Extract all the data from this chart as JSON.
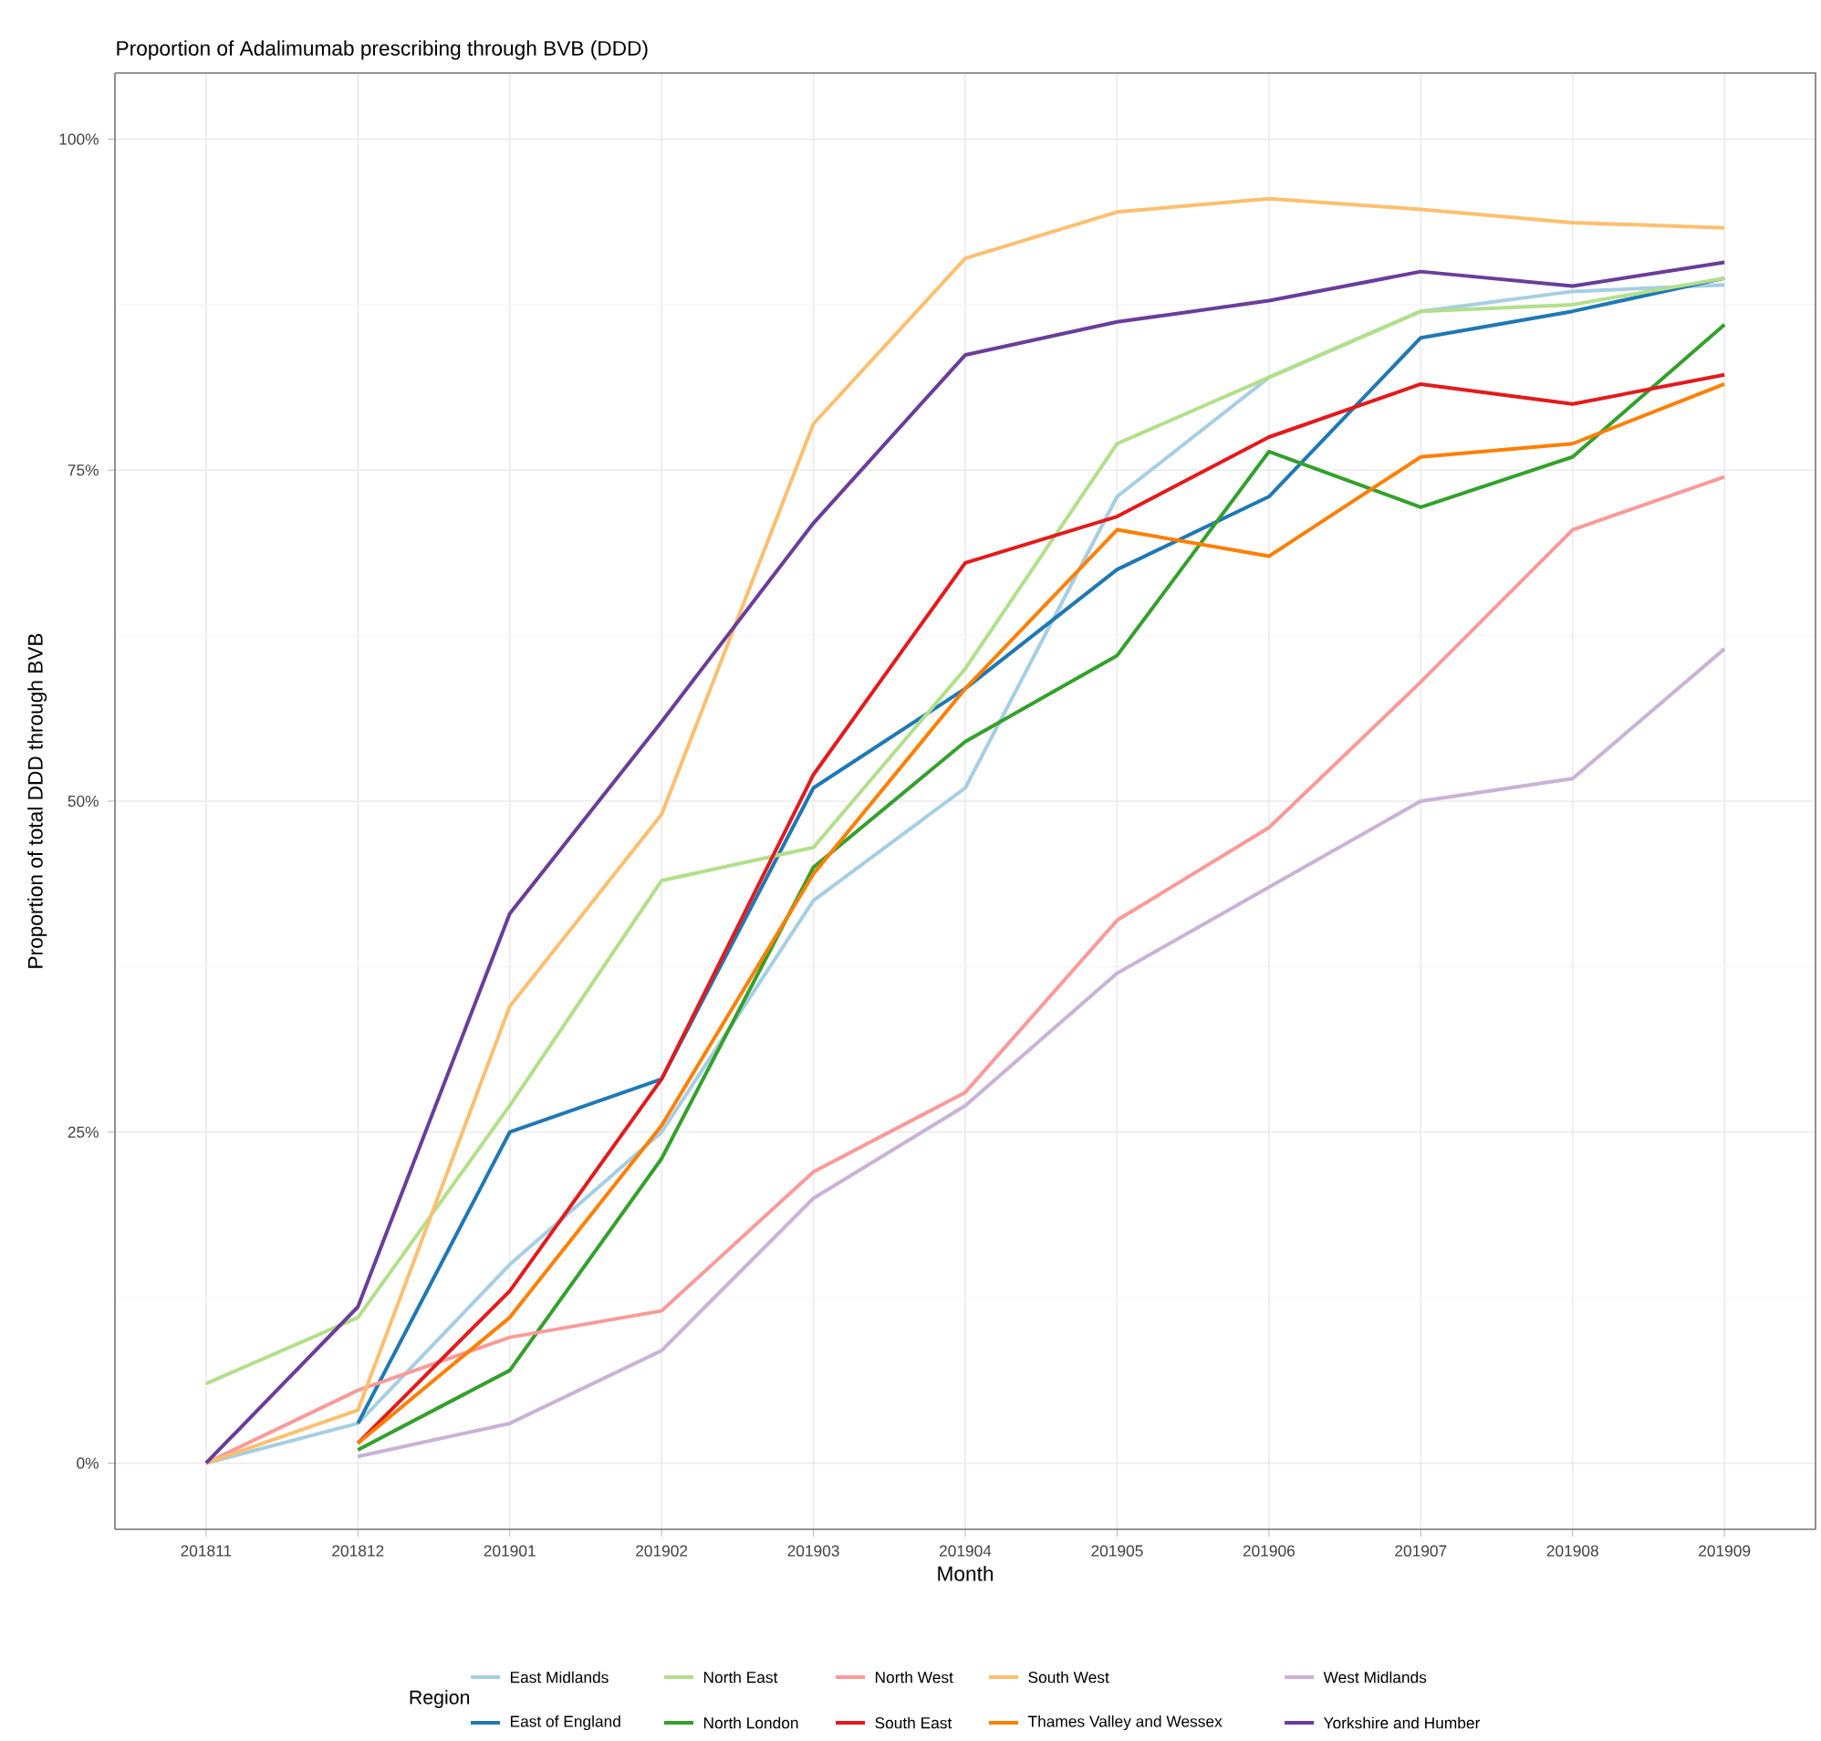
{
  "chart_data": {
    "type": "line",
    "title": "Proportion of Adalimumab prescribing through BVB (DDD)",
    "xlabel": "Month",
    "ylabel": "Proportion of total DDD through BVB",
    "legend_title": "Region",
    "legend": "bottom",
    "grid": true,
    "line_style": "solid",
    "categories": [
      "201811",
      "201812",
      "201901",
      "201902",
      "201903",
      "201904",
      "201905",
      "201906",
      "201907",
      "201908",
      "201909"
    ],
    "ylim": [
      -0.05,
      1.05
    ],
    "yticks": [
      {
        "value": 0,
        "label": "0%"
      },
      {
        "value": 0.25,
        "label": "25%"
      },
      {
        "value": 0.5,
        "label": "50%"
      },
      {
        "value": 0.75,
        "label": "75%"
      },
      {
        "value": 1,
        "label": "100%"
      }
    ],
    "series": [
      {
        "name": "East Midlands",
        "color": "#a6cee3",
        "values": [
          0,
          0.03,
          0.15,
          0.25,
          0.425,
          0.51,
          0.73,
          0.82,
          0.87,
          0.885,
          0.89
        ]
      },
      {
        "name": "East of England",
        "color": "#1f78b4",
        "values": [
          null,
          0.03,
          0.25,
          0.29,
          0.51,
          0.585,
          0.675,
          0.73,
          0.85,
          0.87,
          0.895
        ]
      },
      {
        "name": "North East",
        "color": "#b2df8a",
        "values": [
          0.06,
          0.11,
          0.27,
          0.44,
          0.465,
          0.6,
          0.77,
          0.82,
          0.87,
          0.875,
          0.895
        ]
      },
      {
        "name": "North London",
        "color": "#33a02c",
        "values": [
          null,
          0.01,
          0.07,
          0.23,
          0.45,
          0.545,
          0.61,
          0.764,
          0.722,
          0.76,
          0.86
        ]
      },
      {
        "name": "North West",
        "color": "#fb9a99",
        "values": [
          0,
          0.055,
          0.095,
          0.115,
          0.22,
          0.28,
          0.41,
          0.48,
          0.59,
          0.705,
          0.745
        ]
      },
      {
        "name": "South East",
        "color": "#e31a1c",
        "values": [
          null,
          0.015,
          0.13,
          0.29,
          0.52,
          0.68,
          0.715,
          0.775,
          0.815,
          0.8,
          0.822
        ]
      },
      {
        "name": "South West",
        "color": "#fdbf6f",
        "values": [
          0,
          0.04,
          0.345,
          0.49,
          0.785,
          0.91,
          0.945,
          0.955,
          0.947,
          0.937,
          0.933
        ]
      },
      {
        "name": "Thames Valley and Wessex",
        "color": "#ff7f00",
        "values": [
          null,
          0.015,
          0.11,
          0.255,
          0.445,
          0.585,
          0.705,
          0.685,
          0.76,
          0.77,
          0.815
        ]
      },
      {
        "name": "West Midlands",
        "color": "#cab2d6",
        "values": [
          null,
          0.005,
          0.03,
          0.085,
          0.2,
          0.27,
          0.37,
          0.435,
          0.5,
          0.517,
          0.615
        ]
      },
      {
        "name": "Yorkshire and Humber",
        "color": "#6a3d9a",
        "values": [
          0,
          0.118,
          0.415,
          0.56,
          0.71,
          0.837,
          0.862,
          0.878,
          0.9,
          0.889,
          0.907
        ]
      }
    ]
  }
}
